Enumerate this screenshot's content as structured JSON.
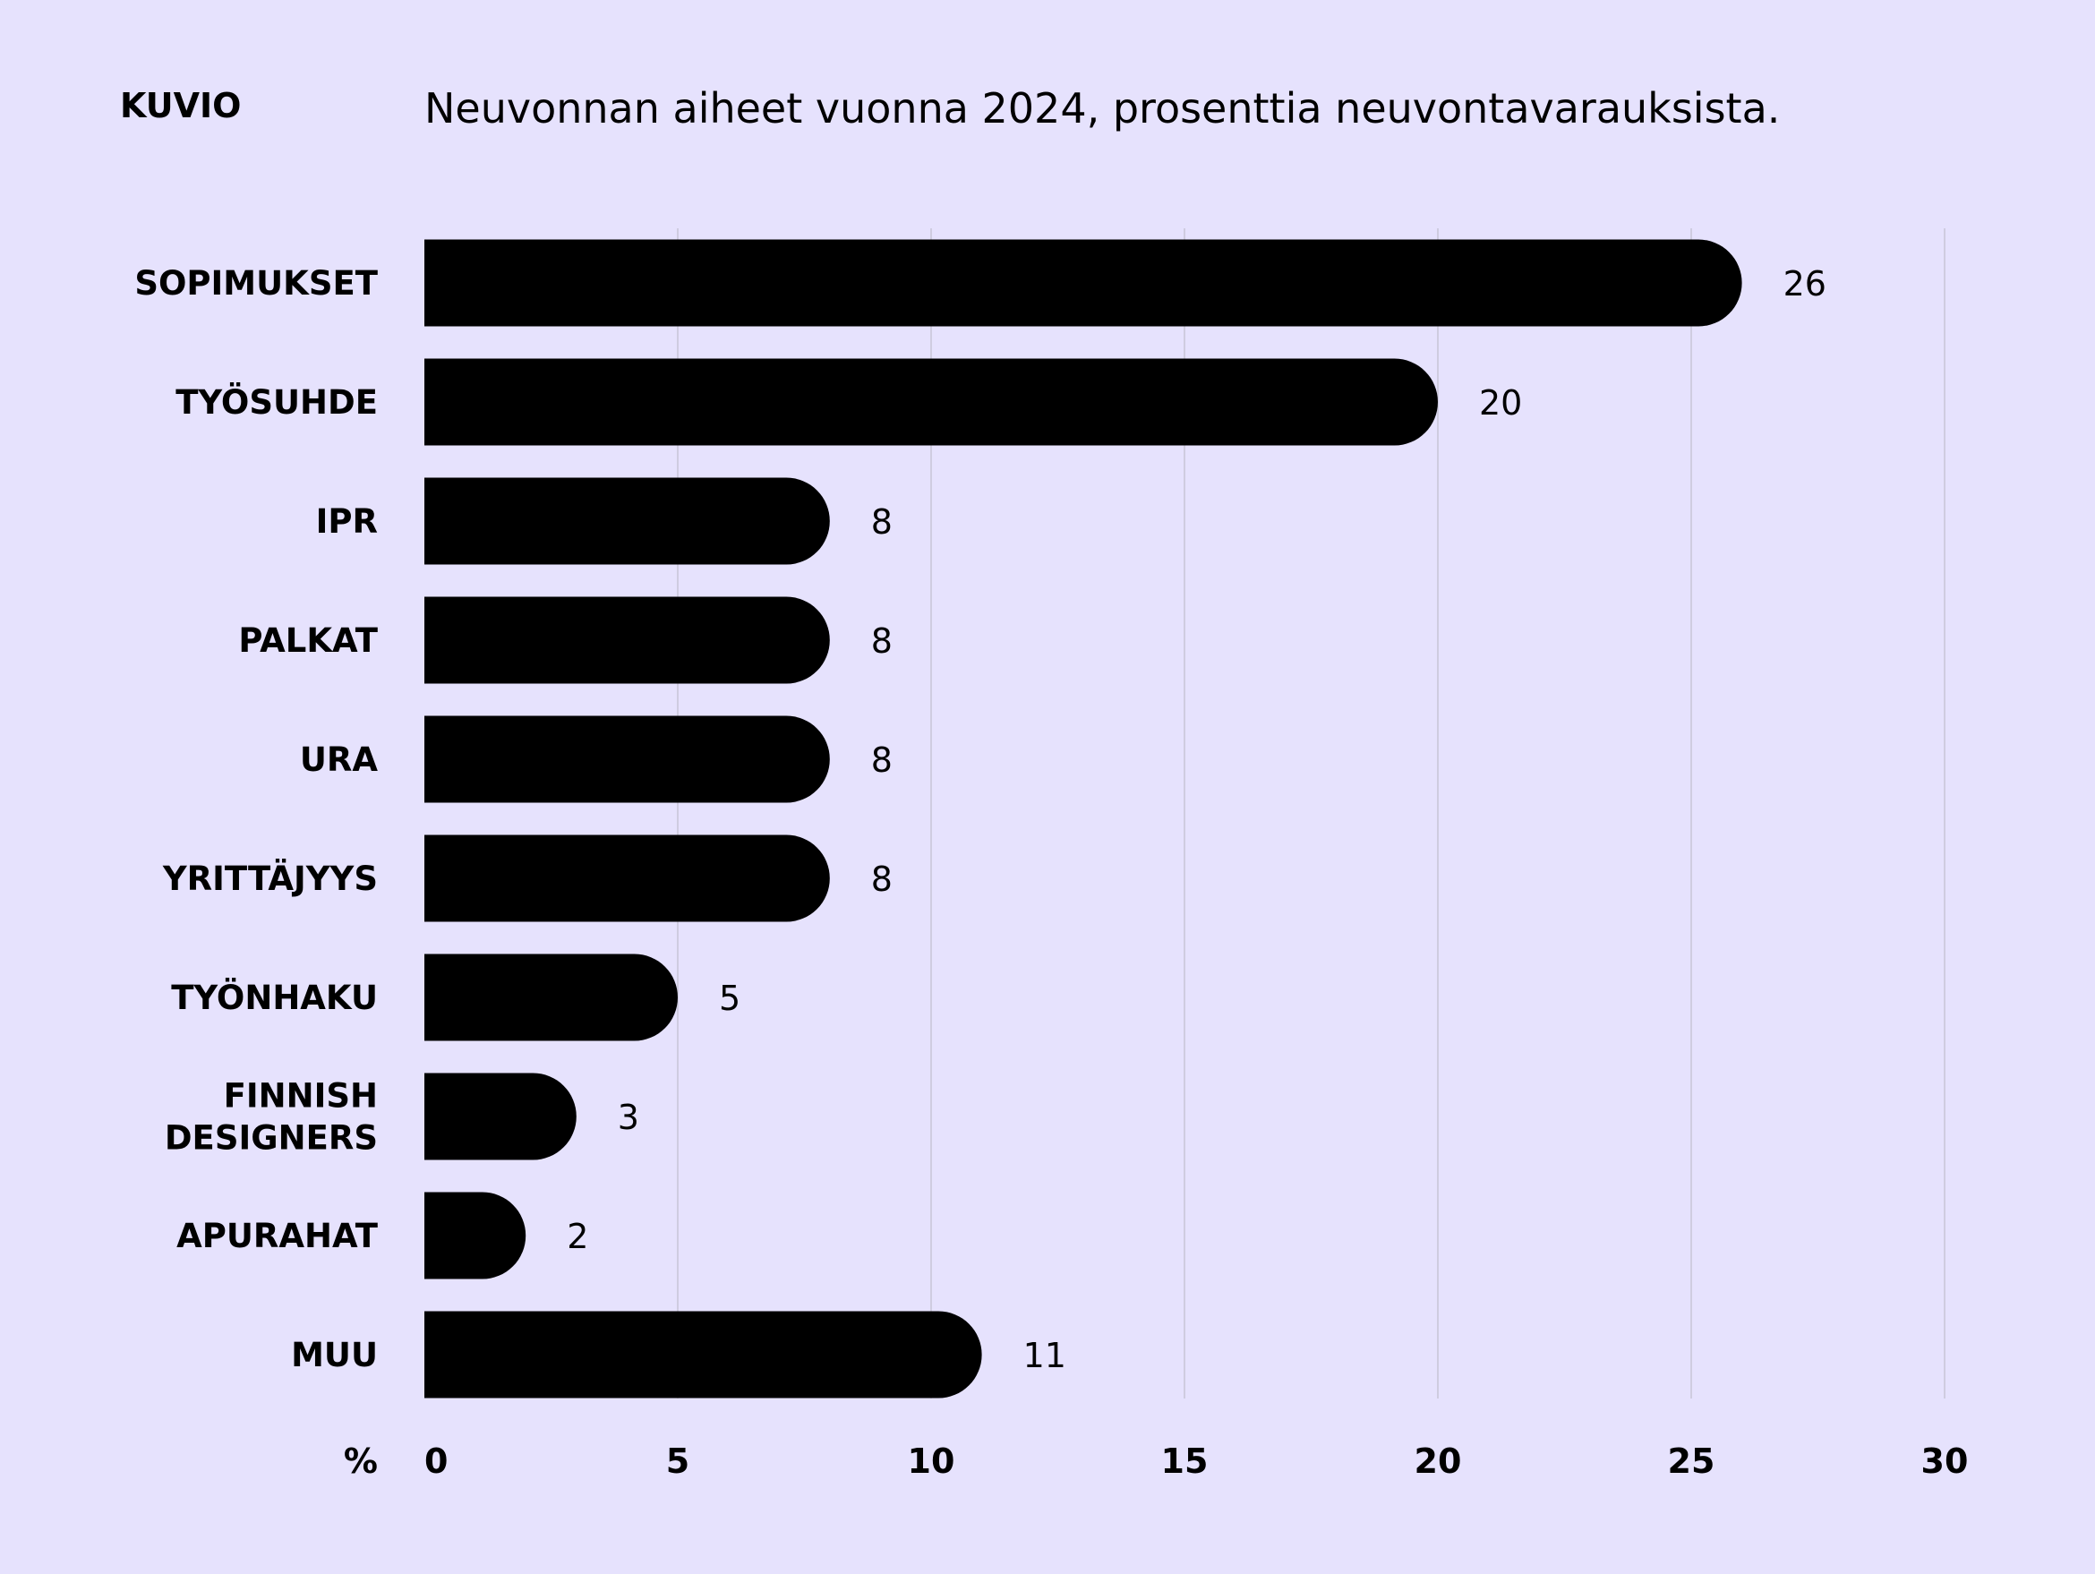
{
  "header": {
    "label": "KUVIO",
    "title": "Neuvonnan aiheet vuonna 2024, prosenttia neuvontavarauksista."
  },
  "chart_data": {
    "type": "bar",
    "orientation": "horizontal",
    "categories": [
      "SOPIMUKSET",
      "TYÖSUHDE",
      "IPR",
      "PALKAT",
      "URA",
      "YRITTÄJYYS",
      "TYÖNHAKU",
      "FINNISH DESIGNERS",
      "APURAHAT",
      "MUU"
    ],
    "values": [
      26,
      20,
      8,
      8,
      8,
      8,
      5,
      3,
      2,
      11
    ],
    "x_unit_label": "%",
    "xlim": [
      0,
      30
    ],
    "xticks": [
      0,
      5,
      10,
      15,
      20,
      25,
      30
    ],
    "grid": true,
    "bar_color": "#000000",
    "background": "#e6e2fd",
    "gridline_color": "#cfcce0"
  }
}
